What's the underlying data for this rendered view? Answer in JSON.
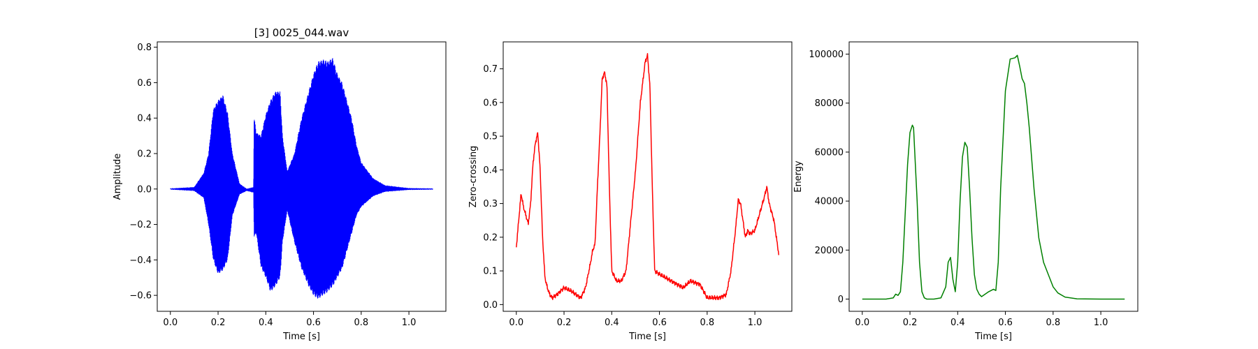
{
  "chart_data": [
    {
      "type": "line",
      "title": "[3] 0025_044.wav",
      "xlabel": "Time [s]",
      "ylabel": "Amplitude",
      "xlim": [
        -0.055,
        1.155
      ],
      "ylim": [
        -0.69,
        0.83
      ],
      "xticks": [
        0.0,
        0.2,
        0.4,
        0.6,
        0.8,
        1.0
      ],
      "xtick_labels": [
        "0.0",
        "0.2",
        "0.4",
        "0.6",
        "0.8",
        "1.0"
      ],
      "yticks": [
        -0.6,
        -0.4,
        -0.2,
        0.0,
        0.2,
        0.4,
        0.6,
        0.8
      ],
      "ytick_labels": [
        "−0.6",
        "−0.4",
        "−0.2",
        "0.0",
        "0.2",
        "0.4",
        "0.6",
        "0.8"
      ],
      "color": "#0000ff",
      "render": "waveform",
      "envelope": {
        "x": [
          0.0,
          0.1,
          0.14,
          0.16,
          0.18,
          0.2,
          0.22,
          0.24,
          0.26,
          0.29,
          0.32,
          0.349,
          0.351,
          0.36,
          0.38,
          0.4,
          0.42,
          0.44,
          0.46,
          0.47,
          0.49,
          0.52,
          0.55,
          0.58,
          0.6,
          0.62,
          0.64,
          0.66,
          0.68,
          0.7,
          0.72,
          0.74,
          0.76,
          0.78,
          0.8,
          0.85,
          0.9,
          1.0,
          1.1
        ],
        "upper": [
          0.002,
          0.01,
          0.09,
          0.2,
          0.45,
          0.5,
          0.53,
          0.43,
          0.2,
          0.03,
          0.0,
          0.01,
          0.41,
          0.32,
          0.3,
          0.42,
          0.5,
          0.55,
          0.55,
          0.3,
          0.1,
          0.2,
          0.4,
          0.55,
          0.65,
          0.72,
          0.73,
          0.72,
          0.74,
          0.65,
          0.6,
          0.5,
          0.4,
          0.25,
          0.15,
          0.06,
          0.02,
          0.004,
          0.002
        ],
        "lower": [
          -0.002,
          -0.01,
          -0.05,
          -0.2,
          -0.4,
          -0.48,
          -0.46,
          -0.4,
          -0.15,
          -0.03,
          -0.01,
          -0.02,
          -0.27,
          -0.25,
          -0.44,
          -0.5,
          -0.58,
          -0.55,
          -0.5,
          -0.3,
          -0.12,
          -0.3,
          -0.45,
          -0.55,
          -0.6,
          -0.62,
          -0.6,
          -0.58,
          -0.55,
          -0.5,
          -0.45,
          -0.35,
          -0.25,
          -0.15,
          -0.1,
          -0.04,
          -0.015,
          -0.004,
          -0.002
        ]
      }
    },
    {
      "type": "line",
      "title": "",
      "xlabel": "Time [s]",
      "ylabel": "Zero-crossing",
      "xlim": [
        -0.055,
        1.155
      ],
      "ylim": [
        -0.02,
        0.78
      ],
      "xticks": [
        0.0,
        0.2,
        0.4,
        0.6,
        0.8,
        1.0
      ],
      "xtick_labels": [
        "0.0",
        "0.2",
        "0.4",
        "0.6",
        "0.8",
        "1.0"
      ],
      "yticks": [
        0.0,
        0.1,
        0.2,
        0.3,
        0.4,
        0.5,
        0.6,
        0.7
      ],
      "ytick_labels": [
        "0.0",
        "0.1",
        "0.2",
        "0.3",
        "0.4",
        "0.5",
        "0.6",
        "0.7"
      ],
      "color": "#ff0000",
      "render": "line",
      "x": [
        0.0,
        0.01,
        0.02,
        0.03,
        0.05,
        0.06,
        0.07,
        0.08,
        0.09,
        0.1,
        0.11,
        0.12,
        0.13,
        0.14,
        0.15,
        0.17,
        0.2,
        0.23,
        0.25,
        0.27,
        0.29,
        0.31,
        0.32,
        0.33,
        0.34,
        0.35,
        0.36,
        0.37,
        0.38,
        0.39,
        0.4,
        0.42,
        0.44,
        0.46,
        0.48,
        0.5,
        0.52,
        0.54,
        0.55,
        0.56,
        0.57,
        0.58,
        0.6,
        0.65,
        0.7,
        0.73,
        0.75,
        0.77,
        0.8,
        0.85,
        0.88,
        0.9,
        0.92,
        0.93,
        0.94,
        0.95,
        0.96,
        0.97,
        0.98,
        1.0,
        1.02,
        1.04,
        1.05,
        1.06,
        1.08,
        1.1
      ],
      "y": [
        0.17,
        0.25,
        0.33,
        0.29,
        0.24,
        0.3,
        0.42,
        0.48,
        0.51,
        0.4,
        0.2,
        0.08,
        0.05,
        0.03,
        0.02,
        0.03,
        0.05,
        0.04,
        0.03,
        0.02,
        0.05,
        0.12,
        0.16,
        0.18,
        0.35,
        0.5,
        0.67,
        0.69,
        0.65,
        0.35,
        0.1,
        0.07,
        0.07,
        0.1,
        0.25,
        0.4,
        0.6,
        0.72,
        0.74,
        0.65,
        0.35,
        0.1,
        0.09,
        0.07,
        0.05,
        0.07,
        0.065,
        0.06,
        0.02,
        0.02,
        0.03,
        0.1,
        0.23,
        0.31,
        0.3,
        0.25,
        0.2,
        0.22,
        0.21,
        0.22,
        0.27,
        0.32,
        0.35,
        0.3,
        0.25,
        0.15
      ]
    },
    {
      "type": "line",
      "title": "",
      "xlabel": "Time [s]",
      "ylabel": "Energy",
      "xlim": [
        -0.055,
        1.155
      ],
      "ylim": [
        -5000,
        105000
      ],
      "xticks": [
        0.0,
        0.2,
        0.4,
        0.6,
        0.8,
        1.0
      ],
      "xtick_labels": [
        "0.0",
        "0.2",
        "0.4",
        "0.6",
        "0.8",
        "1.0"
      ],
      "yticks": [
        0,
        20000,
        40000,
        60000,
        80000,
        100000
      ],
      "ytick_labels": [
        "0",
        "20000",
        "40000",
        "60000",
        "80000",
        "100000"
      ],
      "color": "#008000",
      "render": "line",
      "x": [
        0.0,
        0.1,
        0.13,
        0.14,
        0.15,
        0.16,
        0.17,
        0.18,
        0.19,
        0.2,
        0.21,
        0.215,
        0.22,
        0.23,
        0.24,
        0.25,
        0.26,
        0.27,
        0.3,
        0.33,
        0.35,
        0.36,
        0.37,
        0.38,
        0.39,
        0.4,
        0.41,
        0.42,
        0.43,
        0.44,
        0.45,
        0.46,
        0.47,
        0.48,
        0.49,
        0.5,
        0.53,
        0.55,
        0.56,
        0.57,
        0.58,
        0.6,
        0.62,
        0.64,
        0.65,
        0.66,
        0.67,
        0.68,
        0.69,
        0.7,
        0.72,
        0.74,
        0.76,
        0.78,
        0.8,
        0.82,
        0.85,
        0.9,
        1.0,
        1.1
      ],
      "y": [
        0,
        0,
        500,
        2000,
        1500,
        3000,
        15000,
        35000,
        55000,
        68000,
        71000,
        70000,
        60000,
        40000,
        15000,
        3000,
        500,
        0,
        0,
        500,
        5000,
        15000,
        17000,
        8000,
        3000,
        15000,
        40000,
        58000,
        64000,
        62000,
        45000,
        25000,
        10000,
        4000,
        2000,
        1000,
        3000,
        4000,
        3500,
        15000,
        45000,
        85000,
        98000,
        98500,
        99500,
        95000,
        90000,
        88000,
        80000,
        70000,
        45000,
        25000,
        15000,
        10000,
        5000,
        2500,
        800,
        100,
        0,
        0
      ]
    }
  ]
}
